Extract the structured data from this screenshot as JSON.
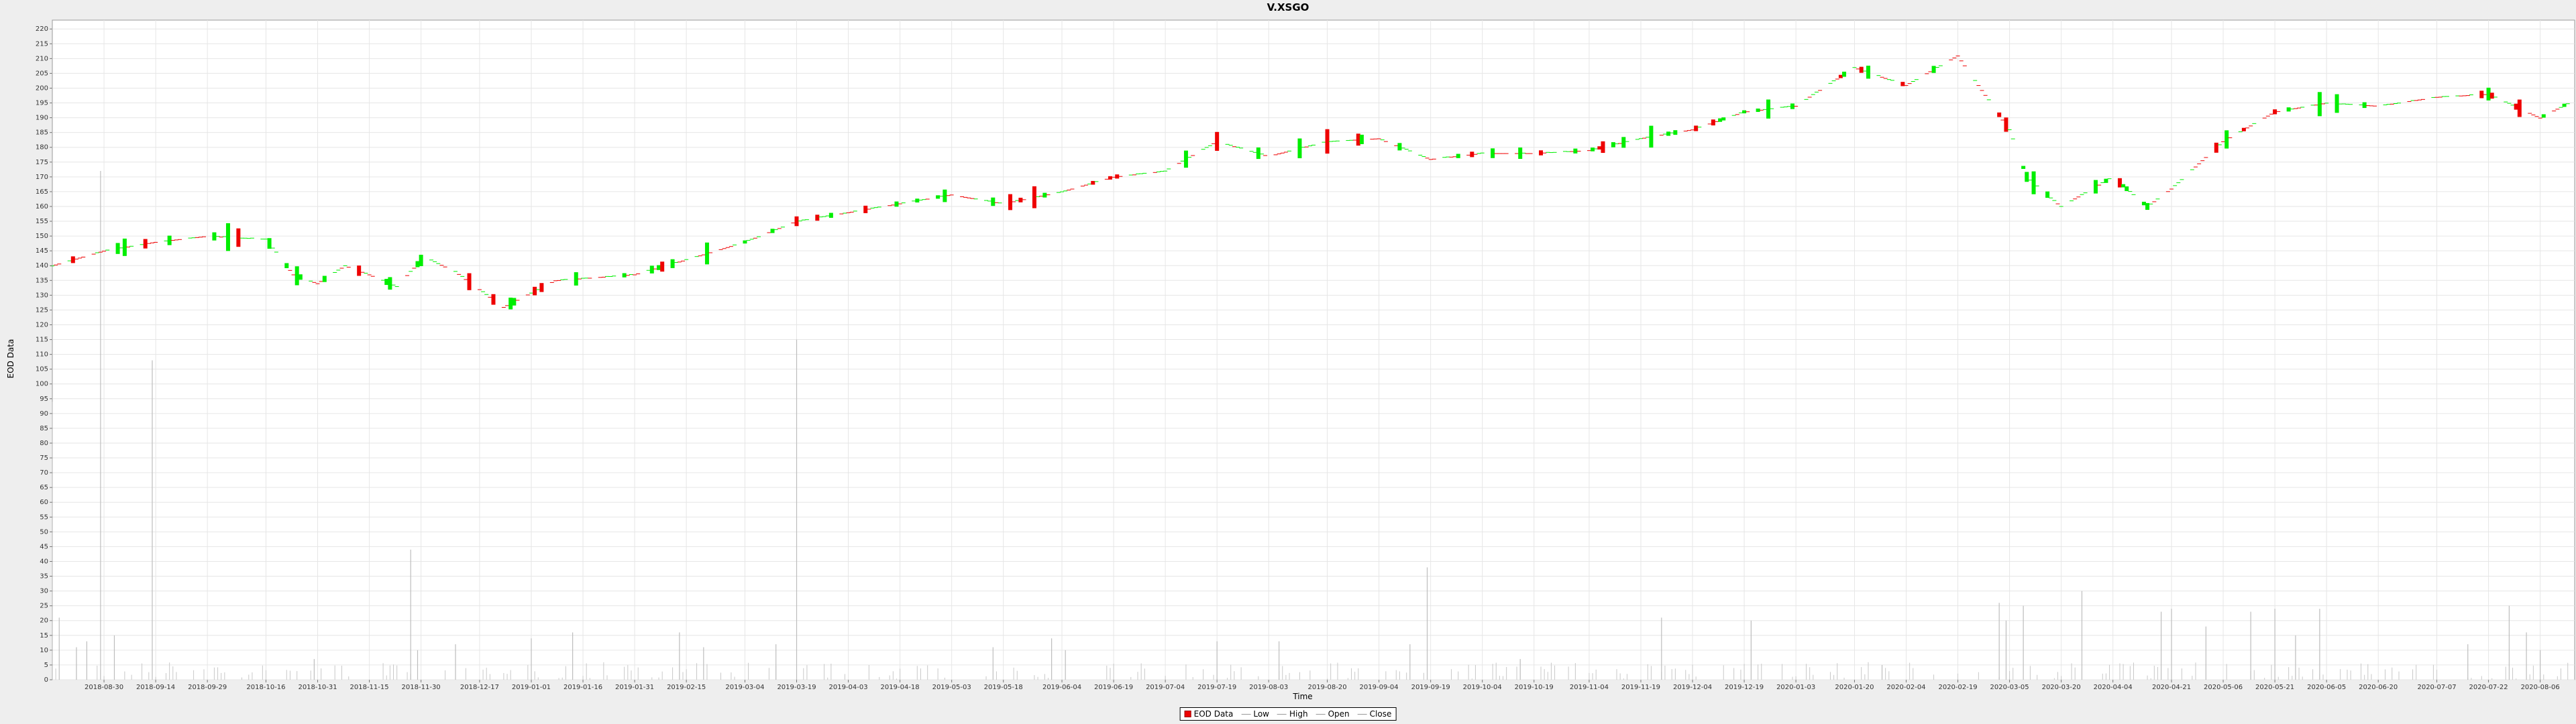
{
  "chart_data": {
    "type": "candlestick",
    "title": "V.XSGO",
    "xlabel": "Time",
    "ylabel": "EOD Data",
    "ylim": [
      0,
      223
    ],
    "yticks": [
      0,
      5,
      10,
      15,
      20,
      25,
      30,
      35,
      40,
      45,
      50,
      55,
      60,
      65,
      70,
      75,
      80,
      85,
      90,
      95,
      100,
      105,
      110,
      115,
      120,
      125,
      130,
      135,
      140,
      145,
      150,
      155,
      160,
      165,
      170,
      175,
      180,
      185,
      190,
      195,
      200,
      205,
      210,
      215,
      220
    ],
    "xlim": [
      "2018-08-15",
      "2020-08-16"
    ],
    "xticks": [
      "2018-08-30",
      "2018-09-14",
      "2018-09-29",
      "2018-10-16",
      "2018-10-31",
      "2018-11-15",
      "2018-11-30",
      "2018-12-17",
      "2019-01-01",
      "2019-01-16",
      "2019-01-31",
      "2019-02-15",
      "2019-03-04",
      "2019-03-19",
      "2019-04-03",
      "2019-04-18",
      "2019-05-03",
      "2019-05-18",
      "2019-06-04",
      "2019-06-19",
      "2019-07-04",
      "2019-07-19",
      "2019-08-03",
      "2019-08-20",
      "2019-09-04",
      "2019-09-19",
      "2019-10-04",
      "2019-10-19",
      "2019-11-04",
      "2019-11-19",
      "2019-12-04",
      "2019-12-19",
      "2020-01-03",
      "2020-01-20",
      "2020-02-04",
      "2020-02-19",
      "2020-03-05",
      "2020-03-20",
      "2020-04-04",
      "2020-04-21",
      "2020-05-06",
      "2020-05-21",
      "2020-06-05",
      "2020-06-20",
      "2020-07-07",
      "2020-07-22",
      "2020-08-06"
    ],
    "grid": true,
    "legend_position": "bottom",
    "legend": [
      "EOD Data",
      "Low",
      "High",
      "Open",
      "Close"
    ],
    "colors": {
      "up": "#00ee00",
      "down": "#ee0000",
      "volume": "#c8c8c8",
      "grid": "#e6e6e6"
    },
    "price_anchors": [
      [
        "2018-08-15",
        140
      ],
      [
        "2018-08-30",
        145
      ],
      [
        "2018-09-14",
        148
      ],
      [
        "2018-09-29",
        150
      ],
      [
        "2018-10-16",
        149
      ],
      [
        "2018-10-24",
        137
      ],
      [
        "2018-10-31",
        134
      ],
      [
        "2018-11-08",
        140
      ],
      [
        "2018-11-15",
        137
      ],
      [
        "2018-11-23",
        133
      ],
      [
        "2018-12-01",
        143
      ],
      [
        "2018-12-10",
        138
      ],
      [
        "2018-12-24",
        126
      ],
      [
        "2019-01-08",
        135
      ],
      [
        "2019-01-31",
        137
      ],
      [
        "2019-02-15",
        142
      ],
      [
        "2019-03-04",
        148
      ],
      [
        "2019-03-19",
        155
      ],
      [
        "2019-04-03",
        158
      ],
      [
        "2019-04-18",
        161
      ],
      [
        "2019-05-03",
        164
      ],
      [
        "2019-05-18",
        161
      ],
      [
        "2019-06-04",
        165
      ],
      [
        "2019-06-19",
        170
      ],
      [
        "2019-07-04",
        172
      ],
      [
        "2019-07-19",
        182
      ],
      [
        "2019-08-03",
        177
      ],
      [
        "2019-08-20",
        182
      ],
      [
        "2019-09-04",
        183
      ],
      [
        "2019-09-19",
        176
      ],
      [
        "2019-10-04",
        178
      ],
      [
        "2019-10-19",
        178
      ],
      [
        "2019-11-04",
        179
      ],
      [
        "2019-11-19",
        183
      ],
      [
        "2019-12-04",
        186
      ],
      [
        "2019-12-19",
        192
      ],
      [
        "2020-01-03",
        194
      ],
      [
        "2020-01-20",
        207
      ],
      [
        "2020-02-04",
        201
      ],
      [
        "2020-02-19",
        211
      ],
      [
        "2020-02-28",
        196
      ],
      [
        "2020-03-05",
        186
      ],
      [
        "2020-03-10",
        170
      ],
      [
        "2020-03-20",
        160
      ],
      [
        "2020-04-04",
        170
      ],
      [
        "2020-04-14",
        160
      ],
      [
        "2020-04-21",
        166
      ],
      [
        "2020-05-06",
        182
      ],
      [
        "2020-05-21",
        192
      ],
      [
        "2020-06-05",
        195
      ],
      [
        "2020-06-20",
        194
      ],
      [
        "2020-07-07",
        197
      ],
      [
        "2020-07-22",
        198
      ],
      [
        "2020-08-06",
        190
      ],
      [
        "2020-08-16",
        196
      ]
    ],
    "volume_spikes": [
      [
        "2018-08-15",
        94
      ],
      [
        "2018-08-17",
        21
      ],
      [
        "2018-08-22",
        11
      ],
      [
        "2018-08-25",
        13
      ],
      [
        "2018-08-29",
        172
      ],
      [
        "2018-09-02",
        15
      ],
      [
        "2018-09-13",
        108
      ],
      [
        "2018-10-30",
        7
      ],
      [
        "2018-11-27",
        44
      ],
      [
        "2018-11-29",
        10
      ],
      [
        "2018-12-10",
        12
      ],
      [
        "2019-01-01",
        14
      ],
      [
        "2019-01-13",
        16
      ],
      [
        "2019-02-13",
        16
      ],
      [
        "2019-02-20",
        11
      ],
      [
        "2019-03-13",
        12
      ],
      [
        "2019-03-19",
        115
      ],
      [
        "2019-05-15",
        11
      ],
      [
        "2019-06-01",
        14
      ],
      [
        "2019-06-05",
        10
      ],
      [
        "2019-07-19",
        13
      ],
      [
        "2019-08-06",
        13
      ],
      [
        "2019-09-13",
        12
      ],
      [
        "2019-09-18",
        38
      ],
      [
        "2019-10-15",
        7
      ],
      [
        "2019-11-25",
        21
      ],
      [
        "2019-12-21",
        20
      ],
      [
        "2020-01-28",
        5
      ],
      [
        "2020-03-02",
        26
      ],
      [
        "2020-03-04",
        20
      ],
      [
        "2020-03-09",
        25
      ],
      [
        "2020-03-26",
        30
      ],
      [
        "2020-04-18",
        23
      ],
      [
        "2020-04-21",
        24
      ],
      [
        "2020-05-01",
        18
      ],
      [
        "2020-05-14",
        23
      ],
      [
        "2020-05-21",
        24
      ],
      [
        "2020-05-27",
        15
      ],
      [
        "2020-06-03",
        24
      ],
      [
        "2020-07-16",
        12
      ],
      [
        "2020-07-28",
        25
      ],
      [
        "2020-08-02",
        16
      ],
      [
        "2020-08-06",
        10
      ]
    ]
  }
}
